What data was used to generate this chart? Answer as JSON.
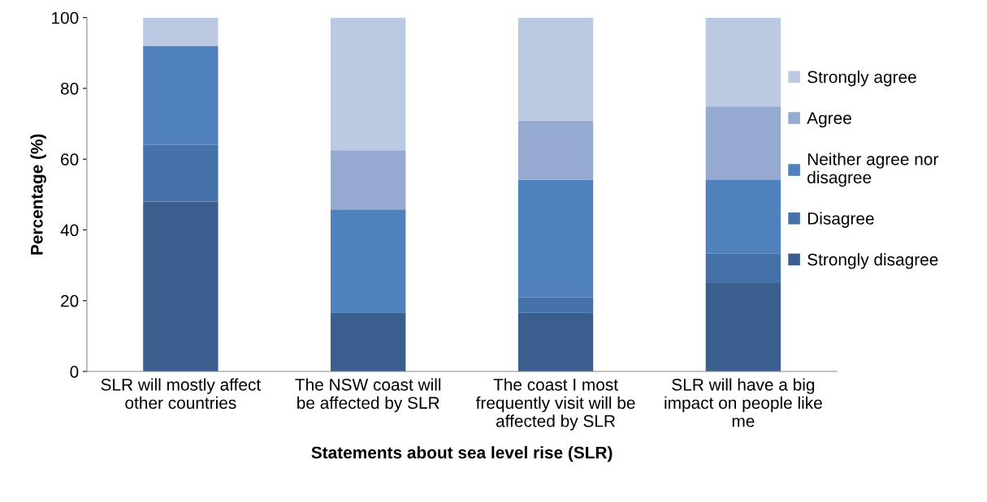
{
  "chart_data": {
    "type": "bar",
    "stacked": true,
    "xlabel": "Statements about sea level rise (SLR)",
    "ylabel": "Percentage (%)",
    "categories": [
      "SLR will mostly affect other countries",
      "The NSW coast will be affected by SLR",
      "The coast I most frequently visit will be affected by SLR",
      "SLR will have a big impact on people like me"
    ],
    "series": [
      {
        "name": "Strongly disagree",
        "color": "#3a5f8f",
        "values": [
          48,
          16.7,
          16.7,
          25
        ]
      },
      {
        "name": "Disagree",
        "color": "#4472a8",
        "values": [
          16,
          0,
          4.2,
          8.3
        ]
      },
      {
        "name": "Neither agree nor disagree",
        "color": "#4f81bd",
        "values": [
          28,
          29.1,
          33.3,
          20.8
        ]
      },
      {
        "name": "Agree",
        "color": "#95a9d1",
        "values": [
          0,
          16.7,
          16.7,
          20.8
        ]
      },
      {
        "name": "Strongly agree",
        "color": "#bcc9e2",
        "values": [
          8,
          37.5,
          29.1,
          25.1
        ]
      }
    ],
    "ylim": [
      0,
      100
    ],
    "yticks": [
      0,
      20,
      40,
      60,
      80,
      100
    ],
    "grid": false,
    "legend": "right"
  }
}
